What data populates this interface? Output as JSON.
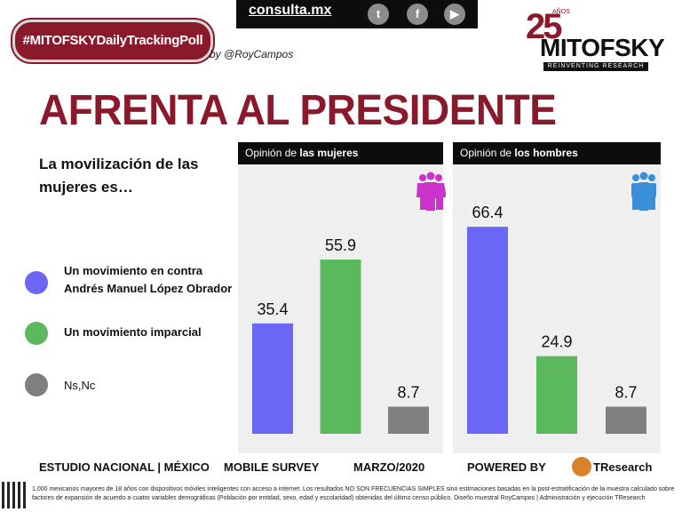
{
  "header": {
    "hashtag": "#MITOFSKYDailyTrackingPoll",
    "byline": "by @RoyCampos",
    "site": "consulta.mx",
    "social": [
      "t",
      "f",
      "▶"
    ],
    "brand_number": "25",
    "brand_anos": "AÑOS",
    "brand_name": "MITOFSKY",
    "brand_tagline": "REINVENTING RESEARCH"
  },
  "title": "AFRENTA AL PRESIDENTE",
  "question": "La movilización de las mujeres es…",
  "legend": [
    {
      "label": "Un movimiento en contra Andrés Manuel López Obrador",
      "color": "#6b66f5"
    },
    {
      "label": "Un movimiento imparcial",
      "color": "#5cb85c"
    },
    {
      "label": "Ns,Nc",
      "color": "#7f7f7f"
    }
  ],
  "panels": [
    {
      "prefix": "Opinión de ",
      "bold": "las mujeres",
      "icon": "women-group-icon",
      "icon_color": "#cc33cc"
    },
    {
      "prefix": "Opinión de ",
      "bold": "los hombres",
      "icon": "men-group-icon",
      "icon_color": "#3a8fd8"
    }
  ],
  "chart_data": [
    {
      "type": "bar",
      "title": "Opinión de las mujeres",
      "categories": [
        "Un movimiento en contra Andrés Manuel López Obrador",
        "Un movimiento imparcial",
        "Ns,Nc"
      ],
      "values": [
        35.4,
        55.9,
        8.7
      ],
      "value_labels": [
        "35.4",
        "55.9",
        "8.7"
      ],
      "colors": [
        "#6b66f5",
        "#5cb85c",
        "#7f7f7f"
      ],
      "ylim": [
        0,
        75
      ]
    },
    {
      "type": "bar",
      "title": "Opinión de los hombres",
      "categories": [
        "Un movimiento en contra Andrés Manuel López Obrador",
        "Un movimiento imparcial",
        "Ns,Nc"
      ],
      "values": [
        66.4,
        24.9,
        8.7
      ],
      "value_labels": [
        "66.4",
        "24.9",
        "8.7"
      ],
      "colors": [
        "#6b66f5",
        "#5cb85c",
        "#7f7f7f"
      ],
      "ylim": [
        0,
        75
      ]
    }
  ],
  "footer": {
    "study": "ESTUDIO NACIONAL | MÉXICO",
    "survey": "MOBILE SURVEY",
    "date": "MARZO/2020",
    "powered": "POWERED BY",
    "powered_brand": "TResearch",
    "note": "1,000 mexicanos mayores de 18 años con dispositivos móviles inteligentes con acceso a internet. Los resultados NO SON FRECUENCIAS SIMPLES sino estimaciones basadas en la post-estratificación de la muestra calculado sobre factores de expansión de acuerdo a cuatro variables demográficas (Población por entidad, sexo, edad y escolaridad) obtenidas del último censo público. Diseño muestral RoyCampos | Administración y ejecución TResearch"
  }
}
